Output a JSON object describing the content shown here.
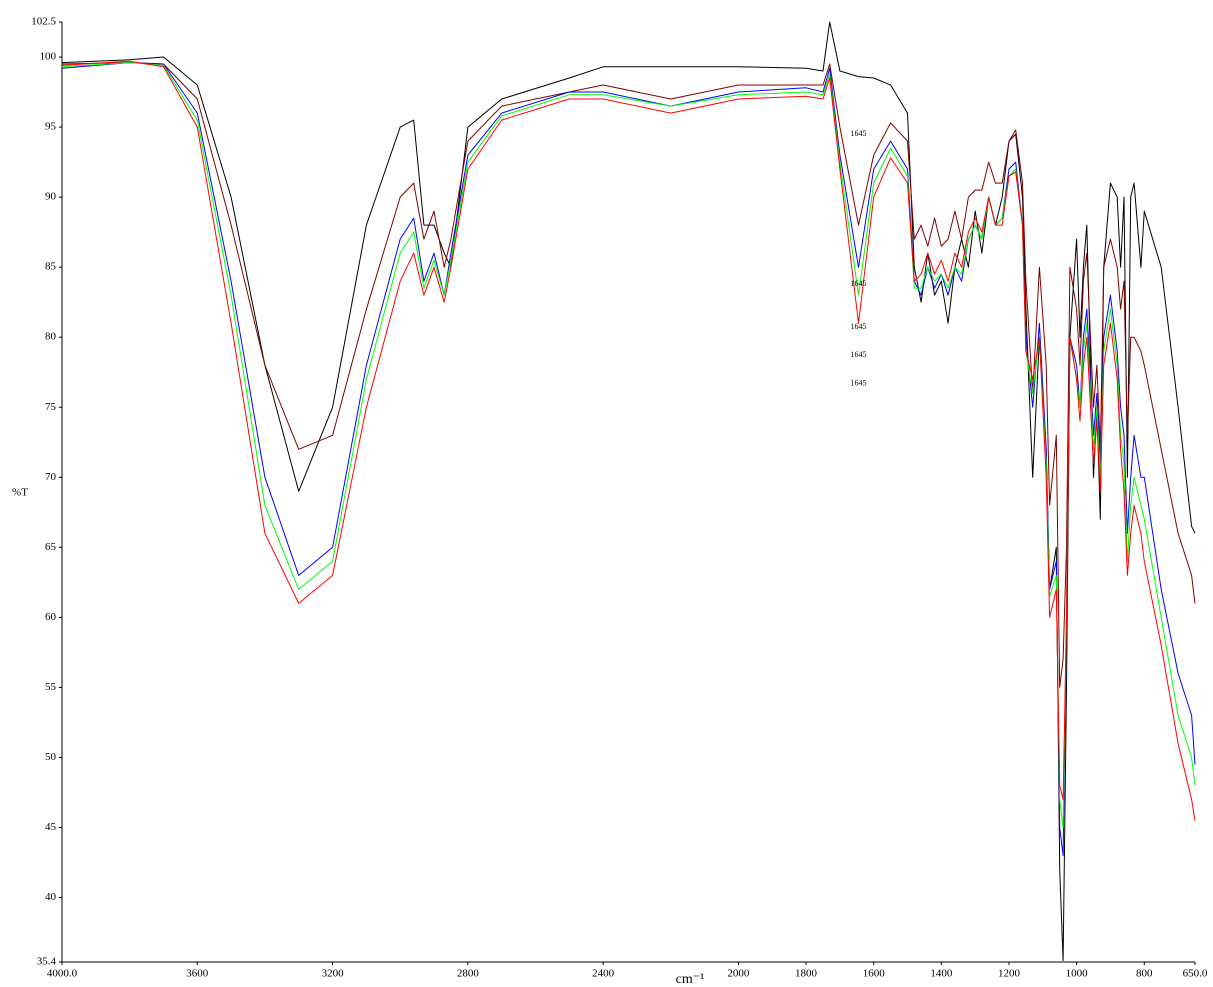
{
  "chart_data": {
    "type": "line",
    "y_label": "%T",
    "x_label": "cm⁻¹",
    "x": [
      4000,
      3800,
      3700,
      3600,
      3500,
      3400,
      3300,
      3200,
      3100,
      3000,
      2960,
      2930,
      2900,
      2870,
      2850,
      2800,
      2700,
      2500,
      2400,
      2200,
      2000,
      1800,
      1750,
      1730,
      1700,
      1645,
      1600,
      1550,
      1500,
      1480,
      1460,
      1440,
      1420,
      1400,
      1380,
      1360,
      1340,
      1320,
      1300,
      1280,
      1260,
      1240,
      1220,
      1200,
      1180,
      1160,
      1150,
      1130,
      1110,
      1090,
      1080,
      1060,
      1050,
      1040,
      1030,
      1020,
      1000,
      990,
      980,
      970,
      950,
      940,
      930,
      920,
      900,
      880,
      870,
      860,
      850,
      840,
      830,
      810,
      800,
      750,
      700,
      660,
      650
    ],
    "series": [
      {
        "color": "#000000",
        "values": [
          99.6,
          99.8,
          100,
          98,
          90,
          78,
          69,
          75,
          88,
          95,
          95.5,
          88,
          88,
          86,
          85,
          95,
          97,
          98.5,
          99.3,
          99.3,
          99.3,
          99.2,
          99,
          102.5,
          99,
          98.6,
          98.5,
          98,
          96,
          85,
          82.5,
          86,
          83,
          84,
          81,
          85,
          87,
          85,
          89,
          86,
          90,
          88,
          90,
          94,
          94.5,
          90,
          82,
          70,
          80,
          72,
          62,
          65,
          42,
          35.5,
          55,
          80,
          87,
          80,
          85,
          88,
          70,
          75,
          67,
          85,
          91,
          90,
          85,
          90,
          70,
          90,
          91,
          85,
          89,
          85,
          75,
          66.5,
          66
        ]
      },
      {
        "color": "#800000",
        "values": [
          99.5,
          99.6,
          99.5,
          97,
          88,
          78,
          72,
          73,
          82,
          90,
          91,
          87,
          89,
          85,
          87,
          94,
          96.5,
          97.5,
          98,
          97,
          98,
          98,
          98,
          99.5,
          95,
          88,
          93,
          95.3,
          94,
          87,
          88,
          86.5,
          88.5,
          86.5,
          87,
          89,
          87,
          90,
          90.5,
          90.5,
          92.5,
          91,
          91,
          94,
          94.8,
          91,
          84,
          76,
          85,
          78,
          68,
          73,
          55,
          57,
          65,
          85,
          82,
          78,
          84,
          86,
          75,
          78,
          72,
          85,
          87,
          85,
          82,
          84,
          73,
          80,
          80,
          79,
          78,
          72,
          66,
          63,
          61
        ]
      },
      {
        "color": "#0000ff",
        "values": [
          99.2,
          99.6,
          99.5,
          96,
          84,
          70,
          63,
          65,
          78,
          87,
          88.5,
          84,
          86,
          83,
          86,
          93,
          96,
          97.5,
          97.5,
          96.5,
          97.5,
          97.8,
          97.5,
          99.2,
          93,
          85,
          92,
          94,
          92,
          84,
          83,
          85,
          83.5,
          84.5,
          83,
          85,
          84,
          87,
          88,
          87,
          90,
          88,
          88.5,
          92,
          92.5,
          88,
          80,
          75,
          81,
          72,
          62,
          64,
          45,
          43,
          60,
          80,
          78,
          75,
          80,
          82,
          73,
          76,
          71,
          80,
          83,
          79,
          75,
          73,
          66,
          70,
          73,
          70,
          70,
          62,
          56,
          53,
          49.5
        ]
      },
      {
        "color": "#00ff00",
        "values": [
          99.3,
          99.6,
          99.4,
          95.5,
          83,
          68,
          62,
          64,
          77,
          86,
          87.5,
          83.5,
          85.5,
          83,
          85.5,
          92.5,
          95.8,
          97.3,
          97.3,
          96.5,
          97.3,
          97.5,
          97.3,
          98.8,
          92.5,
          83,
          91,
          93.5,
          91.5,
          83.5,
          83.5,
          85,
          84,
          84.5,
          83.5,
          85,
          84.5,
          87,
          88,
          87,
          90,
          88,
          88.5,
          91.5,
          92,
          88,
          79,
          76,
          80,
          71,
          61.5,
          63,
          47,
          45,
          60,
          80,
          77,
          75,
          79,
          81,
          72,
          75,
          70,
          79,
          82,
          78,
          73,
          71,
          64,
          68,
          70,
          68,
          67,
          60,
          53,
          50,
          48
        ]
      },
      {
        "color": "#ff0000",
        "values": [
          99.4,
          99.7,
          99.3,
          95,
          81,
          66,
          61,
          63,
          75,
          84,
          86,
          83,
          85,
          82.5,
          85,
          92,
          95.5,
          97,
          97,
          96,
          97,
          97.2,
          97,
          98.5,
          92,
          81,
          90,
          92.8,
          91,
          84,
          84.5,
          86,
          84.5,
          85.5,
          84,
          86,
          85,
          87.5,
          88.5,
          87.5,
          90,
          88,
          88,
          91.5,
          91.8,
          88,
          79,
          77,
          80,
          70,
          60,
          62,
          48,
          47,
          60,
          80,
          77,
          74,
          78,
          80,
          71,
          74,
          69,
          78,
          81,
          77,
          72,
          69,
          63,
          66,
          68,
          66,
          64,
          58,
          51,
          47,
          45.5
        ]
      }
    ],
    "annotations": [
      {
        "text": "1645",
        "x": 1645,
        "y": 94.5
      },
      {
        "text": "1645",
        "x": 1645,
        "y": 83.8
      },
      {
        "text": "1645",
        "x": 1645,
        "y": 80.7
      },
      {
        "text": "1645",
        "x": 1645,
        "y": 78.7
      },
      {
        "text": "1645",
        "x": 1645,
        "y": 76.7
      }
    ],
    "xlim": [
      4000,
      650
    ],
    "ylim": [
      35.4,
      102.5
    ],
    "xticks": [
      {
        "value": 4000,
        "label": "4000.0"
      },
      3600,
      3200,
      2800,
      2400,
      2000,
      1800,
      1600,
      1400,
      1200,
      1000,
      800,
      {
        "value": 650,
        "label": "650.0"
      }
    ],
    "yticks": [
      35.4,
      40,
      45,
      50,
      55,
      60,
      65,
      70,
      75,
      80,
      85,
      90,
      95,
      100,
      102.5
    ],
    "grid": false
  }
}
